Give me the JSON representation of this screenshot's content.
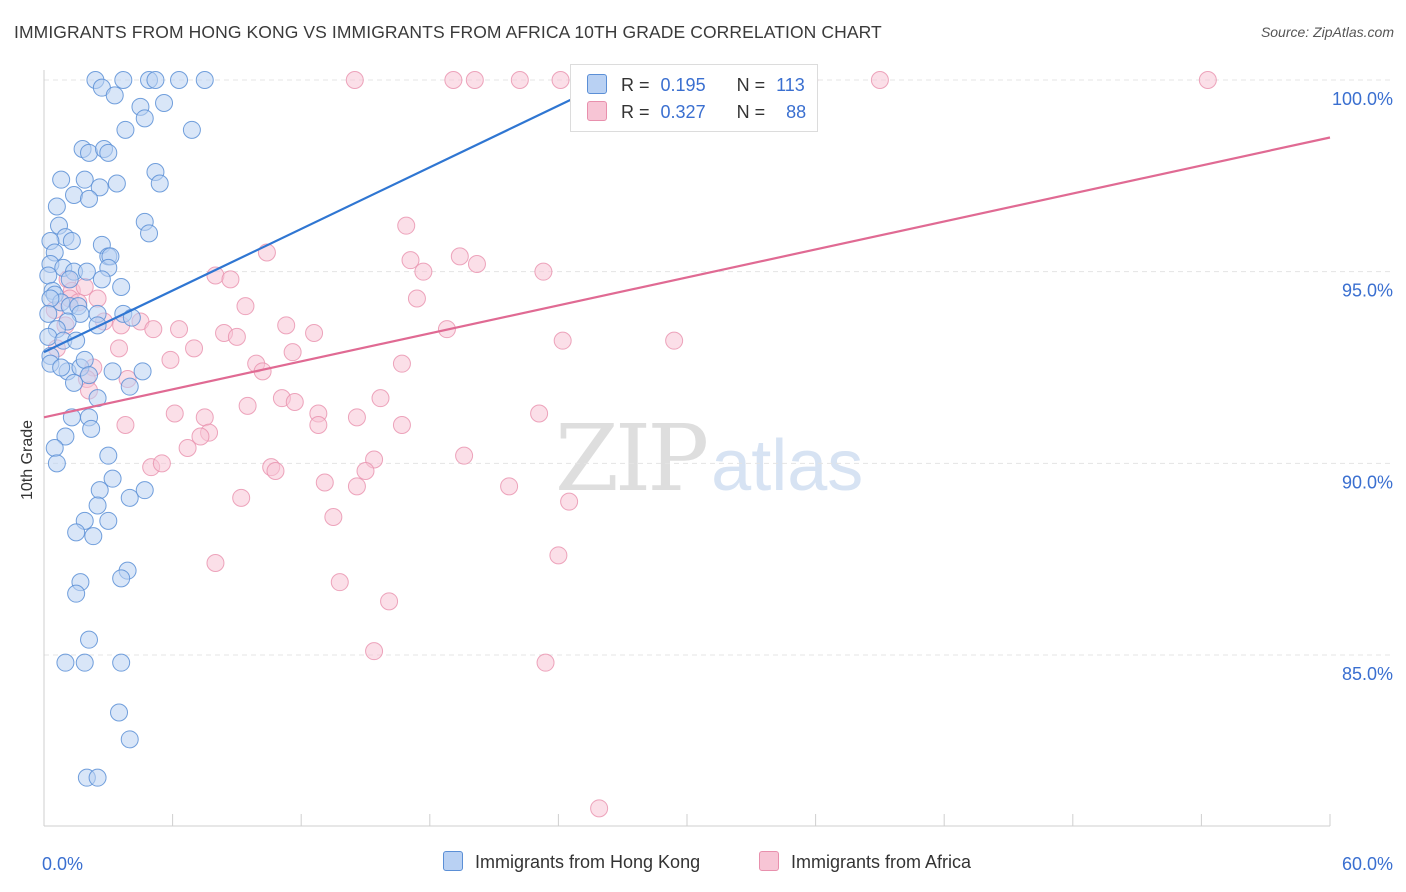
{
  "header": {
    "title": "IMMIGRANTS FROM HONG KONG VS IMMIGRANTS FROM AFRICA 10TH GRADE CORRELATION CHART",
    "source": "Source: ZipAtlas.com"
  },
  "watermark": {
    "zip": "ZIP",
    "atlas": "atlas"
  },
  "legend": {
    "rows": [
      {
        "r_label": "R =",
        "r_value": "0.195",
        "n_label": "N =",
        "n_value": "113"
      },
      {
        "r_label": "R =",
        "r_value": "0.327",
        "n_label": "N =",
        "n_value": "88"
      }
    ]
  },
  "colors": {
    "blue_fill": "#b9d1f3",
    "blue_stroke": "#5b8fd6",
    "blue_line": "#2f76d2",
    "pink_fill": "#f7c5d5",
    "pink_stroke": "#e890ad",
    "pink_line": "#e06a93",
    "tick_label": "#3a6fd0",
    "grid": "#e4e4e4"
  },
  "chart_data": {
    "type": "scatter",
    "title": "IMMIGRANTS FROM HONG KONG VS IMMIGRANTS FROM AFRICA 10TH GRADE CORRELATION CHART",
    "xlabel": "",
    "ylabel": "10th Grade",
    "xlim": [
      0,
      60
    ],
    "ylim": [
      80.5,
      100.5
    ],
    "x_tick_labels": [
      "0.0%",
      "60.0%"
    ],
    "y_ticks": [
      85,
      90,
      95,
      100
    ],
    "y_tick_labels": [
      "85.0%",
      "90.0%",
      "95.0%",
      "100.0%"
    ],
    "grid": "horizontal dashed",
    "legend_placement": "bottom-center",
    "series": [
      {
        "name": "Immigrants from Hong Kong",
        "R": 0.195,
        "N": 113,
        "trend": {
          "x": [
            0,
            26.5
          ],
          "y": [
            92.9,
            100.0
          ]
        },
        "points": [
          [
            2.4,
            100
          ],
          [
            3.7,
            100
          ],
          [
            2.7,
            99.8
          ],
          [
            3.3,
            99.6
          ],
          [
            4.9,
            100
          ],
          [
            5.2,
            100
          ],
          [
            6.3,
            100
          ],
          [
            7.5,
            100
          ],
          [
            4.5,
            99.3
          ],
          [
            4.7,
            99.0
          ],
          [
            5.6,
            99.4
          ],
          [
            3.8,
            98.7
          ],
          [
            6.9,
            98.7
          ],
          [
            1.8,
            98.2
          ],
          [
            2.1,
            98.1
          ],
          [
            2.8,
            98.2
          ],
          [
            3.0,
            98.1
          ],
          [
            0.8,
            97.4
          ],
          [
            1.9,
            97.4
          ],
          [
            3.4,
            97.3
          ],
          [
            5.2,
            97.6
          ],
          [
            5.4,
            97.3
          ],
          [
            2.6,
            97.2
          ],
          [
            1.4,
            97.0
          ],
          [
            2.1,
            96.9
          ],
          [
            0.6,
            96.7
          ],
          [
            0.7,
            96.2
          ],
          [
            4.7,
            96.3
          ],
          [
            4.9,
            96.0
          ],
          [
            1.0,
            95.9
          ],
          [
            1.3,
            95.8
          ],
          [
            0.3,
            95.8
          ],
          [
            2.7,
            95.7
          ],
          [
            0.5,
            95.5
          ],
          [
            3.0,
            95.4
          ],
          [
            3.1,
            95.4
          ],
          [
            0.3,
            95.2
          ],
          [
            0.9,
            95.1
          ],
          [
            1.4,
            95.0
          ],
          [
            2.0,
            95.0
          ],
          [
            3.0,
            95.1
          ],
          [
            0.2,
            94.9
          ],
          [
            1.2,
            94.8
          ],
          [
            2.7,
            94.8
          ],
          [
            3.6,
            94.6
          ],
          [
            0.4,
            94.5
          ],
          [
            0.5,
            94.4
          ],
          [
            0.8,
            94.2
          ],
          [
            1.2,
            94.1
          ],
          [
            1.6,
            94.1
          ],
          [
            0.3,
            94.3
          ],
          [
            0.2,
            93.9
          ],
          [
            1.7,
            93.9
          ],
          [
            2.5,
            93.9
          ],
          [
            3.7,
            93.9
          ],
          [
            1.1,
            93.7
          ],
          [
            0.6,
            93.5
          ],
          [
            0.2,
            93.3
          ],
          [
            0.9,
            93.2
          ],
          [
            1.5,
            93.2
          ],
          [
            2.5,
            93.6
          ],
          [
            4.1,
            93.8
          ],
          [
            0.3,
            92.8
          ],
          [
            0.3,
            92.6
          ],
          [
            1.1,
            92.4
          ],
          [
            0.8,
            92.5
          ],
          [
            1.7,
            92.5
          ],
          [
            1.9,
            92.7
          ],
          [
            3.2,
            92.4
          ],
          [
            4.6,
            92.4
          ],
          [
            1.4,
            92.1
          ],
          [
            2.1,
            92.3
          ],
          [
            4.0,
            92.0
          ],
          [
            2.5,
            91.7
          ],
          [
            1.3,
            91.2
          ],
          [
            2.1,
            91.2
          ],
          [
            2.2,
            90.9
          ],
          [
            1.0,
            90.7
          ],
          [
            0.5,
            90.4
          ],
          [
            0.6,
            90.0
          ],
          [
            3.0,
            90.2
          ],
          [
            3.2,
            89.6
          ],
          [
            2.6,
            89.3
          ],
          [
            4.0,
            89.1
          ],
          [
            4.7,
            89.3
          ],
          [
            2.5,
            88.9
          ],
          [
            1.9,
            88.5
          ],
          [
            3.0,
            88.5
          ],
          [
            1.5,
            88.2
          ],
          [
            2.3,
            88.1
          ],
          [
            3.9,
            87.2
          ],
          [
            1.7,
            86.9
          ],
          [
            3.6,
            87.0
          ],
          [
            1.5,
            86.6
          ],
          [
            2.1,
            85.4
          ],
          [
            1.0,
            84.8
          ],
          [
            1.9,
            84.8
          ],
          [
            3.6,
            84.8
          ],
          [
            3.5,
            83.5
          ],
          [
            4.0,
            82.8
          ],
          [
            2.0,
            81.8
          ],
          [
            2.5,
            81.8
          ]
        ]
      },
      {
        "name": "Immigrants from Africa",
        "R": 0.327,
        "N": 88,
        "trend": {
          "x": [
            0,
            60
          ],
          "y": [
            91.2,
            98.5
          ]
        },
        "points": [
          [
            14.5,
            100
          ],
          [
            19.1,
            100
          ],
          [
            20.1,
            100
          ],
          [
            22.2,
            100
          ],
          [
            24.1,
            100
          ],
          [
            27.0,
            100
          ],
          [
            30.0,
            100
          ],
          [
            32.7,
            100
          ],
          [
            35.7,
            100
          ],
          [
            39.0,
            100
          ],
          [
            54.3,
            100
          ],
          [
            16.9,
            96.2
          ],
          [
            10.4,
            95.5
          ],
          [
            17.1,
            95.3
          ],
          [
            19.4,
            95.4
          ],
          [
            20.2,
            95.2
          ],
          [
            23.3,
            95.0
          ],
          [
            17.7,
            95.0
          ],
          [
            8.0,
            94.9
          ],
          [
            8.7,
            94.8
          ],
          [
            1.1,
            94.8
          ],
          [
            1.3,
            94.5
          ],
          [
            2.5,
            94.3
          ],
          [
            1.9,
            94.6
          ],
          [
            17.4,
            94.3
          ],
          [
            9.4,
            94.1
          ],
          [
            1.2,
            94.3
          ],
          [
            1.6,
            94.2
          ],
          [
            0.5,
            94.0
          ],
          [
            1.0,
            93.6
          ],
          [
            2.8,
            93.7
          ],
          [
            3.6,
            93.6
          ],
          [
            4.5,
            93.7
          ],
          [
            5.1,
            93.5
          ],
          [
            6.3,
            93.5
          ],
          [
            8.4,
            93.4
          ],
          [
            9.0,
            93.3
          ],
          [
            11.3,
            93.6
          ],
          [
            12.6,
            93.4
          ],
          [
            18.8,
            93.5
          ],
          [
            24.2,
            93.2
          ],
          [
            29.4,
            93.2
          ],
          [
            0.6,
            93.0
          ],
          [
            3.5,
            93.0
          ],
          [
            7.0,
            93.0
          ],
          [
            11.6,
            92.9
          ],
          [
            5.9,
            92.7
          ],
          [
            9.9,
            92.6
          ],
          [
            10.2,
            92.4
          ],
          [
            16.7,
            92.6
          ],
          [
            2.3,
            92.5
          ],
          [
            3.9,
            92.2
          ],
          [
            2.0,
            92.2
          ],
          [
            2.1,
            91.9
          ],
          [
            11.1,
            91.7
          ],
          [
            11.7,
            91.6
          ],
          [
            15.7,
            91.7
          ],
          [
            9.5,
            91.5
          ],
          [
            12.8,
            91.3
          ],
          [
            14.6,
            91.2
          ],
          [
            23.1,
            91.3
          ],
          [
            6.1,
            91.3
          ],
          [
            7.5,
            91.2
          ],
          [
            3.8,
            91.0
          ],
          [
            7.7,
            90.8
          ],
          [
            12.8,
            91.0
          ],
          [
            16.7,
            91.0
          ],
          [
            7.3,
            90.7
          ],
          [
            6.7,
            90.4
          ],
          [
            15.4,
            90.1
          ],
          [
            19.6,
            90.2
          ],
          [
            5.0,
            89.9
          ],
          [
            5.5,
            90.0
          ],
          [
            10.6,
            89.9
          ],
          [
            10.8,
            89.8
          ],
          [
            15.0,
            89.8
          ],
          [
            13.1,
            89.5
          ],
          [
            14.6,
            89.4
          ],
          [
            21.7,
            89.4
          ],
          [
            9.2,
            89.1
          ],
          [
            24.5,
            89.0
          ],
          [
            13.5,
            88.6
          ],
          [
            24.0,
            87.6
          ],
          [
            8.0,
            87.4
          ],
          [
            13.8,
            86.9
          ],
          [
            16.1,
            86.4
          ],
          [
            15.4,
            85.1
          ],
          [
            23.4,
            84.8
          ],
          [
            25.9,
            81.0
          ]
        ]
      }
    ]
  },
  "bottom_legend": {
    "items": [
      "Immigrants from Hong Kong",
      "Immigrants from Africa"
    ]
  }
}
